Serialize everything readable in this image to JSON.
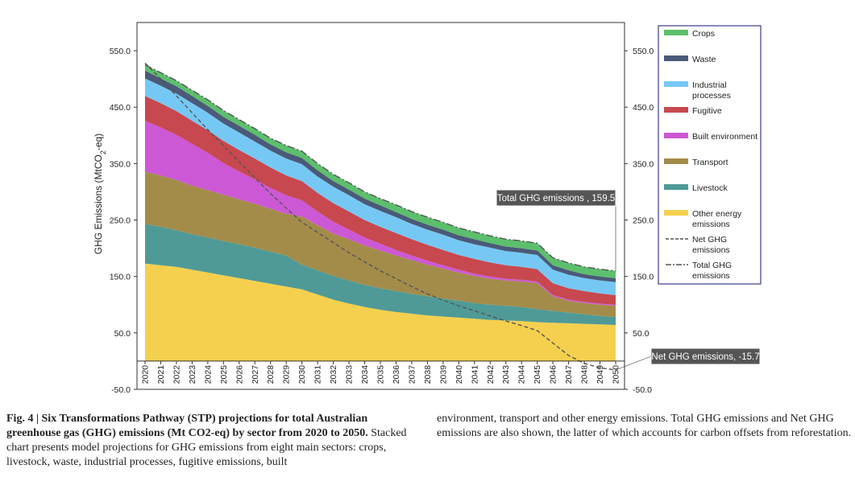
{
  "chart_data": {
    "type": "area",
    "stacked": true,
    "ylabel_parts": [
      "GHG Emissions (MtCO",
      "2",
      "-eq)"
    ],
    "ylim": [
      -50,
      600
    ],
    "yticks": [
      -50.0,
      50.0,
      150.0,
      250.0,
      350.0,
      450.0,
      550.0
    ],
    "ytick_labels": [
      "-50.0",
      "50.0",
      "150.0",
      "250.0",
      "350.0",
      "450.0",
      "550.0"
    ],
    "grid": false,
    "legend_position": "top-right",
    "x": [
      "2020",
      "2021",
      "2022",
      "2023",
      "2024",
      "2025",
      "2026",
      "2027",
      "2028",
      "2029",
      "2030",
      "2031",
      "2032",
      "2033",
      "2034",
      "2035",
      "2036",
      "2037",
      "2038",
      "2039",
      "2040",
      "2041",
      "2042",
      "2043",
      "2044",
      "2045",
      "2046",
      "2047",
      "2048",
      "2049",
      "2050"
    ],
    "series": [
      {
        "name": "Other energy emissions",
        "color": "#f5d04f",
        "values": [
          173,
          170,
          167,
          162,
          157,
          152,
          147,
          142,
          137,
          132,
          127,
          118,
          109,
          102,
          96,
          91,
          87,
          84,
          81,
          79,
          77,
          75,
          73,
          72,
          71,
          69,
          68,
          67,
          66,
          65,
          64
        ]
      },
      {
        "name": "Livestock",
        "color": "#4f9a97",
        "values": [
          70,
          68,
          65,
          63,
          62,
          61,
          60,
          59,
          57,
          55,
          44,
          43,
          42,
          41,
          39,
          38,
          37,
          35,
          34,
          32,
          30,
          28,
          27,
          26,
          25,
          23,
          21,
          19,
          17,
          15,
          14
        ]
      },
      {
        "name": "Transport",
        "color": "#a38c4a",
        "values": [
          93,
          91,
          89,
          86,
          84,
          82,
          80,
          78,
          76,
          74,
          85,
          80,
          75,
          73,
          70,
          67,
          63,
          60,
          56,
          53,
          50,
          48,
          46,
          45,
          45,
          46,
          26,
          21,
          20,
          20,
          20
        ]
      },
      {
        "name": "Built environment",
        "color": "#cc58d5",
        "values": [
          90,
          85,
          80,
          74,
          66,
          56,
          49,
          43,
          37,
          33,
          29,
          24,
          21,
          17,
          14,
          12,
          10,
          8,
          7,
          6,
          5,
          4,
          4,
          3,
          3,
          3,
          2,
          2,
          2,
          2,
          2
        ]
      },
      {
        "name": "Fugitive",
        "color": "#c7484e",
        "values": [
          44,
          43,
          42,
          41,
          40,
          39,
          38,
          37,
          36,
          35,
          34,
          33,
          33,
          32,
          31,
          30,
          30,
          29,
          28,
          27,
          26,
          26,
          25,
          24,
          23,
          22,
          21,
          20,
          19,
          18,
          17
        ]
      },
      {
        "name": "Industrial processes",
        "color": "#76c8f4",
        "values": [
          31,
          31,
          31,
          31,
          31,
          31,
          31,
          30,
          30,
          30,
          30,
          29,
          29,
          29,
          28,
          28,
          28,
          27,
          27,
          27,
          26,
          26,
          26,
          25,
          25,
          25,
          24,
          24,
          23,
          23,
          23
        ]
      },
      {
        "name": "Waste",
        "color": "#4a5a78",
        "values": [
          14,
          13,
          13,
          13,
          12,
          12,
          12,
          12,
          11,
          11,
          11,
          11,
          10,
          10,
          10,
          10,
          9,
          9,
          9,
          9,
          9,
          9,
          8,
          8,
          8,
          8,
          8,
          8,
          7,
          7,
          7
        ]
      },
      {
        "name": "Crops",
        "color": "#5cbf6c",
        "values": [
          10,
          10,
          10,
          10,
          11,
          11,
          11,
          11,
          11,
          12,
          12,
          12,
          12,
          12,
          12,
          12,
          13,
          13,
          13,
          13,
          13,
          13,
          13,
          13,
          13,
          13,
          13,
          13,
          13,
          13,
          13
        ]
      }
    ],
    "lines": [
      {
        "name": "Net GHG emissions",
        "style": "dashed",
        "color": "#555555",
        "values": [
          528,
          500,
          470,
          440,
          410,
          382,
          353,
          325,
          297,
          271,
          246,
          228,
          210,
          192,
          176,
          160,
          146,
          132,
          119,
          108,
          98,
          89,
          80,
          71,
          63,
          54,
          32,
          10,
          -4,
          -12,
          -15.7
        ]
      },
      {
        "name": "Total GHG emissions",
        "style": "dashdot",
        "color": "#555555",
        "values": [
          525,
          511,
          497,
          480,
          463,
          444,
          428,
          412,
          395,
          382,
          372,
          350,
          331,
          316,
          300,
          288,
          277,
          265,
          255,
          246,
          236,
          229,
          222,
          216,
          213,
          209,
          183,
          174,
          167,
          163,
          159.5
        ]
      }
    ],
    "annotations": [
      {
        "label": "Total GHG emissions , 159.5",
        "series": "Total GHG emissions"
      },
      {
        "label": "Net GHG emissions, -15.7",
        "series": "Net GHG emissions"
      }
    ],
    "legend_items": [
      {
        "label_lines": [
          "Crops"
        ],
        "kind": "swatch",
        "color": "#5cbf6c"
      },
      {
        "label_lines": [
          "Waste"
        ],
        "kind": "swatch",
        "color": "#4a5a78"
      },
      {
        "label_lines": [
          "Industrial",
          "processes"
        ],
        "kind": "swatch",
        "color": "#76c8f4"
      },
      {
        "label_lines": [
          "Fugitive"
        ],
        "kind": "swatch",
        "color": "#c7484e"
      },
      {
        "label_lines": [
          "Built environment"
        ],
        "kind": "swatch",
        "color": "#cc58d5"
      },
      {
        "label_lines": [
          "Transport"
        ],
        "kind": "swatch",
        "color": "#a38c4a"
      },
      {
        "label_lines": [
          "Livestock"
        ],
        "kind": "swatch",
        "color": "#4f9a97"
      },
      {
        "label_lines": [
          "Other energy",
          "emissions"
        ],
        "kind": "swatch",
        "color": "#f5d04f"
      },
      {
        "label_lines": [
          "Net GHG",
          "emissions"
        ],
        "kind": "dashed",
        "color": "#555555"
      },
      {
        "label_lines": [
          "Total GHG",
          "emissions"
        ],
        "kind": "dashdot",
        "color": "#555555"
      }
    ]
  },
  "caption": {
    "bold": "Fig. 4 | Six Transformations Pathway (STP) projections for total Australian greenhouse gas (GHG) emissions (Mt CO2-eq) by sector from 2020 to 2050.",
    "text_left": "Stacked chart presents model projections for GHG emissions from eight main sectors: crops, livestock, waste, industrial processes, fugitive emissions, built",
    "text_right": "environment, transport and other energy emissions. Total GHG emissions and Net GHG emissions are also shown, the latter of which accounts for carbon offsets from reforestation."
  }
}
